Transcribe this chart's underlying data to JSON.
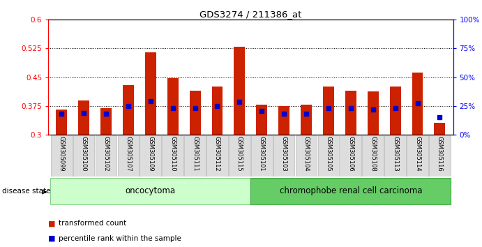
{
  "title": "GDS3274 / 211386_at",
  "samples": [
    "GSM305099",
    "GSM305100",
    "GSM305102",
    "GSM305107",
    "GSM305109",
    "GSM305110",
    "GSM305111",
    "GSM305112",
    "GSM305115",
    "GSM305101",
    "GSM305103",
    "GSM305104",
    "GSM305105",
    "GSM305106",
    "GSM305108",
    "GSM305113",
    "GSM305114",
    "GSM305116"
  ],
  "transformed_count": [
    0.365,
    0.39,
    0.37,
    0.43,
    0.515,
    0.447,
    0.415,
    0.425,
    0.53,
    0.378,
    0.375,
    0.378,
    0.425,
    0.415,
    0.413,
    0.425,
    0.462,
    0.33
  ],
  "percentile_rank": [
    0.355,
    0.357,
    0.355,
    0.375,
    0.387,
    0.37,
    0.37,
    0.375,
    0.385,
    0.362,
    0.355,
    0.355,
    0.37,
    0.37,
    0.365,
    0.37,
    0.382,
    0.345
  ],
  "ylim_left": [
    0.3,
    0.6
  ],
  "ylim_right": [
    0,
    100
  ],
  "yticks_left": [
    0.3,
    0.375,
    0.45,
    0.525,
    0.6
  ],
  "yticks_right": [
    0,
    25,
    50,
    75,
    100
  ],
  "ytick_labels_left": [
    "0.3",
    "0.375",
    "0.45",
    "0.525",
    "0.6"
  ],
  "ytick_labels_right": [
    "0%",
    "25%",
    "50%",
    "75%",
    "100%"
  ],
  "bar_color": "#cc2200",
  "dot_color": "#0000cc",
  "oncocytoma_count": 9,
  "chromophobe_count": 9,
  "group1_label": "oncocytoma",
  "group2_label": "chromophobe renal cell carcinoma",
  "disease_state_label": "disease state",
  "legend_bar": "transformed count",
  "legend_dot": "percentile rank within the sample",
  "group1_bg": "#ccffcc",
  "group2_bg": "#66cc66"
}
